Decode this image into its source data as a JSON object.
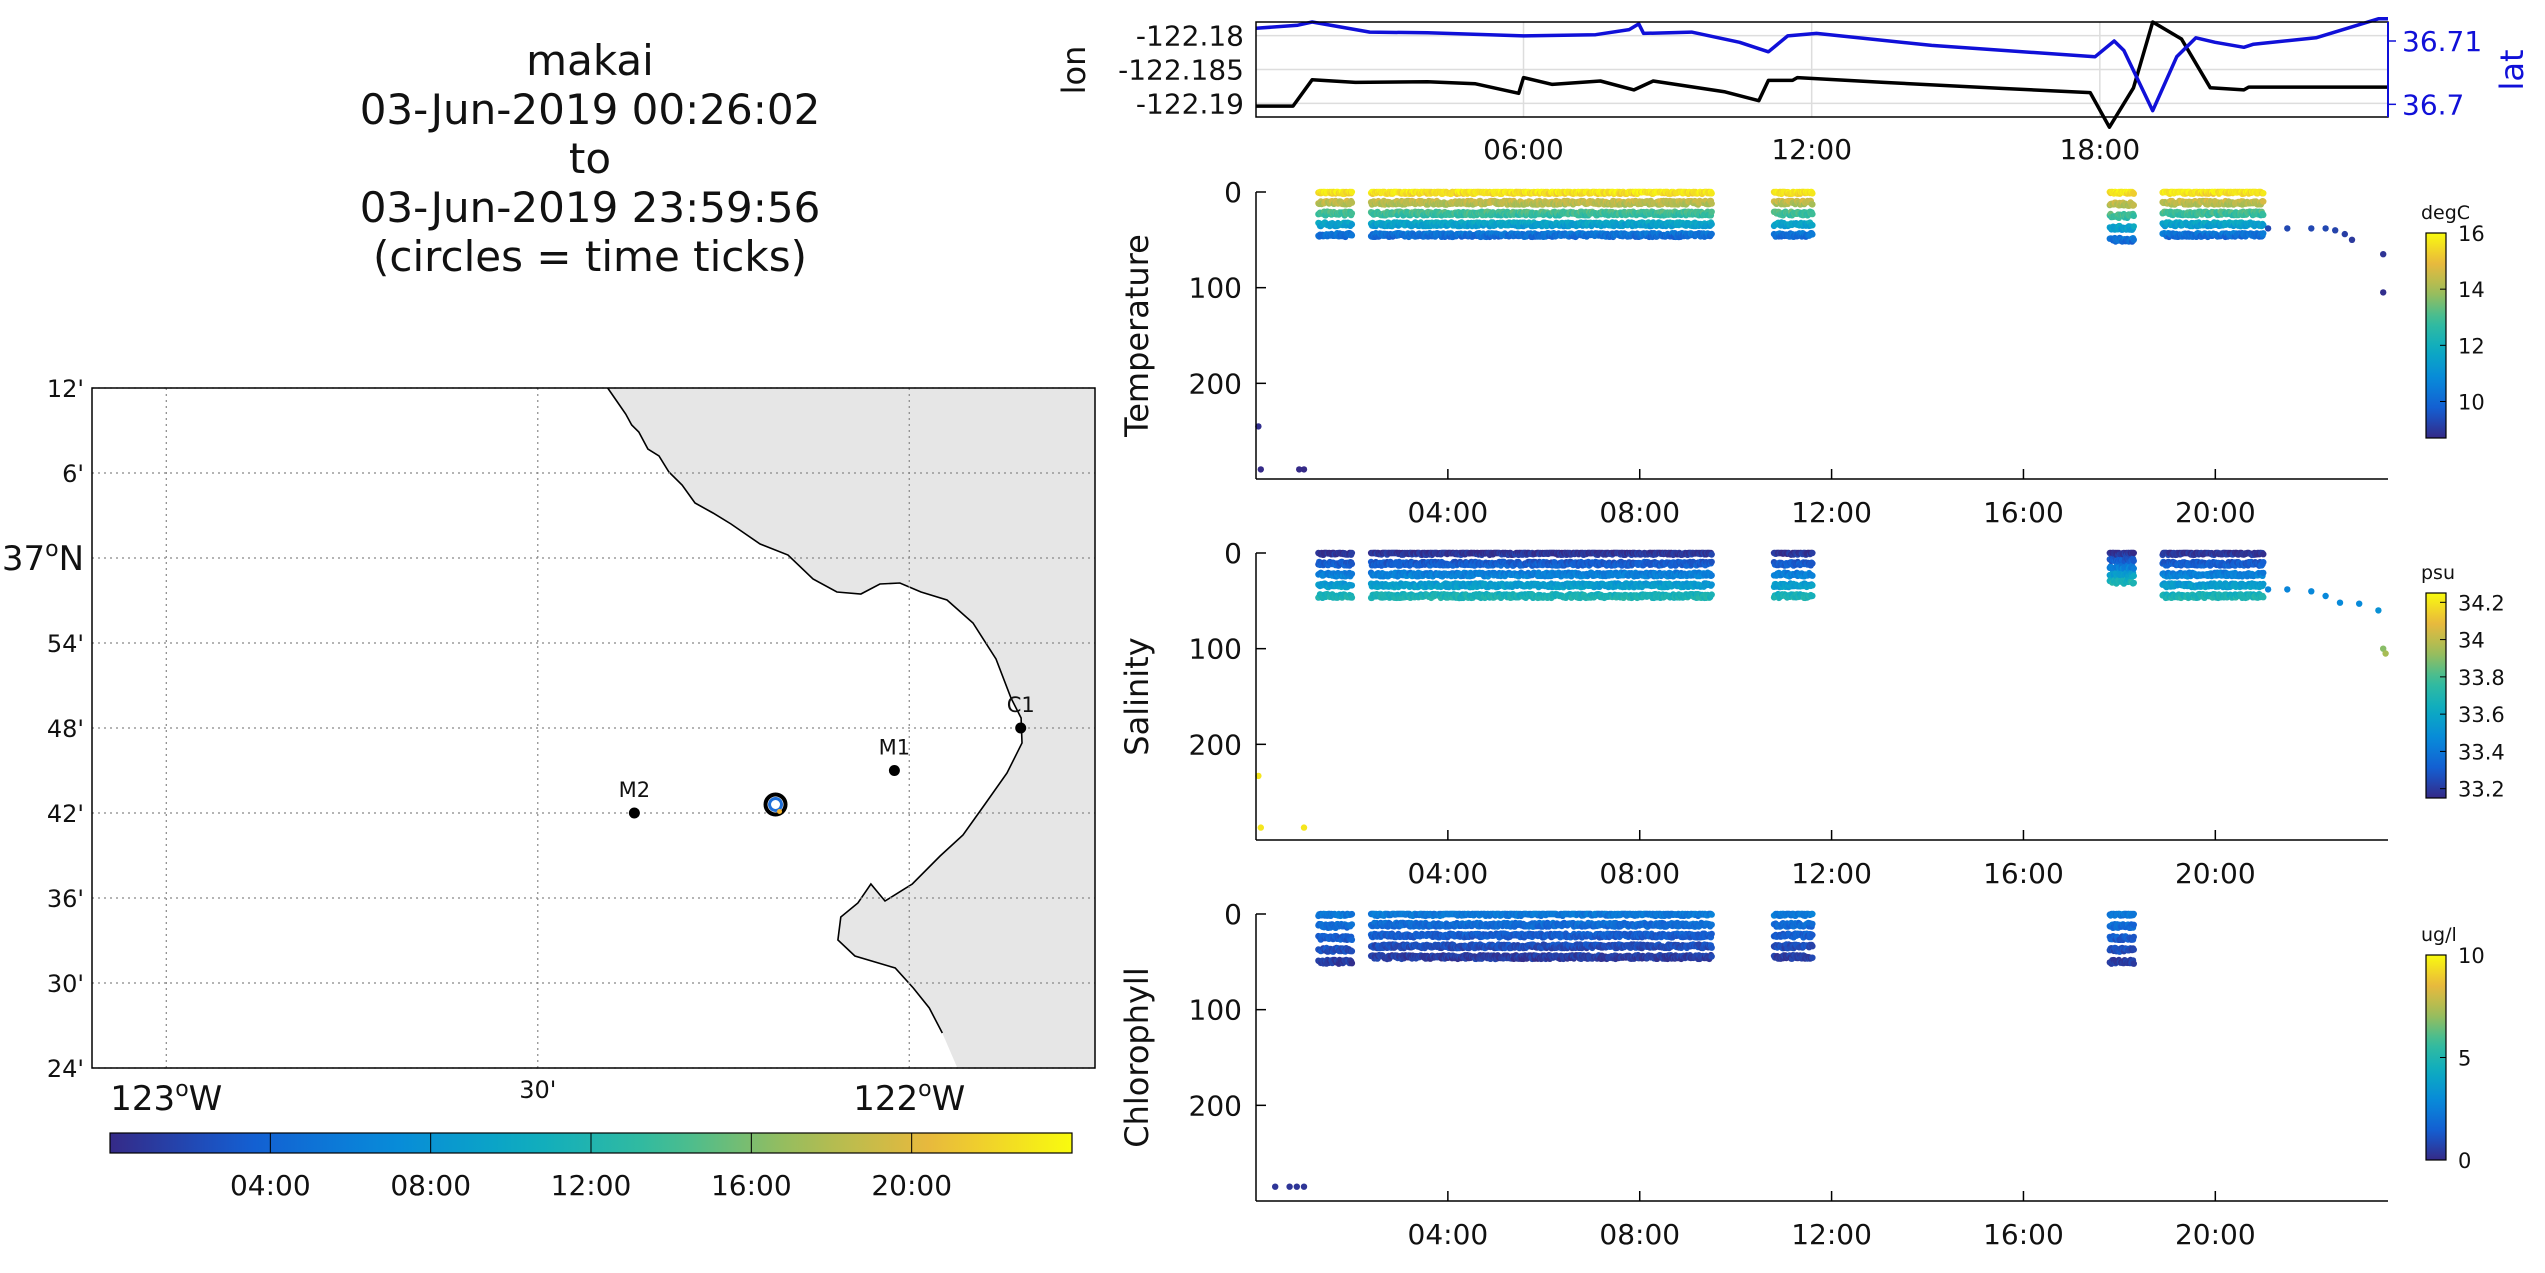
{
  "title": {
    "vehicle": "makai",
    "start": "03-Jun-2019 00:26:02",
    "to": "to",
    "end": "03-Jun-2019 23:59:56",
    "note": "(circles = time ticks)"
  },
  "chart_data": [
    {
      "type": "map",
      "name": "track-map",
      "lat_ticks": [
        "12'",
        "6'",
        "37°N",
        "54'",
        "48'",
        "42'",
        "36'",
        "30'",
        "24'"
      ],
      "lon_ticks": [
        "123°W",
        "30'",
        "122°W"
      ],
      "lon_range": [
        -123.1,
        -121.75
      ],
      "lat_range": [
        36.4,
        37.2
      ],
      "grid": true,
      "stations": [
        {
          "label": "M2",
          "lon": -122.37,
          "lat": 36.7
        },
        {
          "label": "M1",
          "lon": -122.02,
          "lat": 36.75
        },
        {
          "label": "C1",
          "lon": -121.85,
          "lat": 36.8
        }
      ],
      "vehicle_position": {
        "lon": -122.18,
        "lat": 36.71
      },
      "colorbar": {
        "ticks": [
          "04:00",
          "08:00",
          "12:00",
          "16:00",
          "20:00"
        ],
        "colormap": "parula",
        "range_hours": [
          0,
          24
        ]
      }
    },
    {
      "type": "line",
      "name": "lon-lat",
      "ylabel_left": "lon",
      "ylabel_right": "lat",
      "yticks_left": [
        "-122.18",
        "-122.185",
        "-122.19"
      ],
      "yticks_right": [
        "36.71",
        "36.7"
      ],
      "ylim_left": [
        -122.192,
        -122.178
      ],
      "ylim_right": [
        36.698,
        36.713
      ],
      "xlim_hours": [
        0.43,
        24.0
      ],
      "xticks": [
        "06:00",
        "12:00",
        "18:00"
      ],
      "grid": true,
      "series": [
        {
          "name": "lon",
          "color": "#000000",
          "points": [
            [
              0.43,
              -122.1904
            ],
            [
              1.2,
              -122.1904
            ],
            [
              1.6,
              -122.1865
            ],
            [
              2.5,
              -122.1869
            ],
            [
              4.0,
              -122.1868
            ],
            [
              5.0,
              -122.1871
            ],
            [
              5.9,
              -122.1885
            ],
            [
              6.0,
              -122.1862
            ],
            [
              6.6,
              -122.1872
            ],
            [
              7.6,
              -122.1867
            ],
            [
              8.3,
              -122.188
            ],
            [
              8.7,
              -122.1867
            ],
            [
              10.2,
              -122.1883
            ],
            [
              10.9,
              -122.1896
            ],
            [
              11.1,
              -122.1866
            ],
            [
              11.6,
              -122.1866
            ],
            [
              11.7,
              -122.1862
            ],
            [
              13.5,
              -122.1869
            ],
            [
              16.0,
              -122.1878
            ],
            [
              17.8,
              -122.1884
            ],
            [
              18.2,
              -122.1935
            ],
            [
              18.7,
              -122.1877
            ],
            [
              19.1,
              -122.178
            ],
            [
              19.7,
              -122.1805
            ],
            [
              20.3,
              -122.1877
            ],
            [
              21.0,
              -122.188
            ],
            [
              21.1,
              -122.1876
            ],
            [
              24.0,
              -122.1876
            ]
          ]
        },
        {
          "name": "lat",
          "color": "#1010d8",
          "points": [
            [
              0.43,
              36.712
            ],
            [
              1.3,
              36.7125
            ],
            [
              1.6,
              36.713
            ],
            [
              2.8,
              36.7114
            ],
            [
              4.0,
              36.7113
            ],
            [
              6.0,
              36.7108
            ],
            [
              7.5,
              36.711
            ],
            [
              8.2,
              36.7118
            ],
            [
              8.4,
              36.7127
            ],
            [
              8.5,
              36.7112
            ],
            [
              9.5,
              36.7114
            ],
            [
              10.5,
              36.7098
            ],
            [
              11.1,
              36.7083
            ],
            [
              11.5,
              36.7108
            ],
            [
              12.1,
              36.7112
            ],
            [
              14.5,
              36.7093
            ],
            [
              17.9,
              36.7075
            ],
            [
              18.3,
              36.71
            ],
            [
              18.5,
              36.7085
            ],
            [
              19.1,
              36.699
            ],
            [
              19.6,
              36.7075
            ],
            [
              20.0,
              36.7105
            ],
            [
              20.4,
              36.7098
            ],
            [
              21.0,
              36.709
            ],
            [
              21.2,
              36.7095
            ],
            [
              22.5,
              36.7105
            ],
            [
              23.8,
              36.7135
            ],
            [
              24.0,
              36.7135
            ]
          ]
        }
      ]
    },
    {
      "type": "scatter",
      "name": "temperature",
      "ylabel": "Temperature",
      "yticks": [
        "0",
        "100",
        "200"
      ],
      "ylim": [
        0,
        300
      ],
      "y_reversed": true,
      "xticks": [
        "04:00",
        "08:00",
        "12:00",
        "16:00",
        "20:00"
      ],
      "xlim_hours": [
        0.0,
        23.6
      ],
      "colorbar": {
        "label": "degC",
        "ticks": [
          "16",
          "14",
          "12",
          "10"
        ],
        "range": [
          8.7,
          16
        ]
      },
      "casts": [
        {
          "start": 1.3,
          "end": 2.0,
          "top": 0,
          "bottom": 45
        },
        {
          "start": 2.4,
          "end": 9.5,
          "top": 0,
          "bottom": 45
        },
        {
          "start": 10.8,
          "end": 11.6,
          "top": 0,
          "bottom": 45
        },
        {
          "start": 17.8,
          "end": 18.3,
          "top": 0,
          "bottom": 50
        },
        {
          "start": 18.9,
          "end": 21.0,
          "top": 0,
          "bottom": 45
        }
      ],
      "points": [
        [
          21.1,
          38,
          9.3
        ],
        [
          21.5,
          38,
          9.3
        ],
        [
          22.0,
          38,
          9.3
        ],
        [
          22.3,
          38,
          9.3
        ],
        [
          22.5,
          40,
          9.2
        ],
        [
          22.7,
          44,
          9.1
        ],
        [
          22.85,
          50,
          9.0
        ],
        [
          23.5,
          65,
          8.9
        ],
        [
          23.5,
          105,
          8.8
        ],
        [
          0.05,
          245,
          8.8
        ],
        [
          0.1,
          290,
          8.7
        ],
        [
          0.9,
          290,
          8.7
        ],
        [
          1.0,
          290,
          8.7
        ]
      ]
    },
    {
      "type": "scatter",
      "name": "salinity",
      "ylabel": "Salinity",
      "yticks": [
        "0",
        "100",
        "200"
      ],
      "ylim": [
        0,
        300
      ],
      "y_reversed": true,
      "xticks": [
        "04:00",
        "08:00",
        "12:00",
        "16:00",
        "20:00"
      ],
      "xlim_hours": [
        0.0,
        23.6
      ],
      "colorbar": {
        "label": "psu",
        "ticks": [
          "34.2",
          "34",
          "33.8",
          "33.6",
          "33.4",
          "33.2"
        ],
        "range": [
          33.15,
          34.25
        ]
      },
      "casts": [
        {
          "start": 1.3,
          "end": 2.0,
          "top": 0,
          "bottom": 45
        },
        {
          "start": 2.4,
          "end": 9.5,
          "top": 0,
          "bottom": 45
        },
        {
          "start": 10.8,
          "end": 11.6,
          "top": 0,
          "bottom": 45
        },
        {
          "start": 17.8,
          "end": 18.3,
          "top": 0,
          "bottom": 30
        },
        {
          "start": 18.9,
          "end": 21.0,
          "top": 0,
          "bottom": 45
        }
      ],
      "points": [
        [
          21.1,
          38,
          33.45
        ],
        [
          21.5,
          38,
          33.45
        ],
        [
          22.0,
          40,
          33.46
        ],
        [
          22.3,
          45,
          33.46
        ],
        [
          22.6,
          52,
          33.47
        ],
        [
          23.0,
          53,
          33.47
        ],
        [
          23.4,
          60,
          33.5
        ],
        [
          23.5,
          100,
          33.9
        ],
        [
          23.55,
          105,
          33.95
        ],
        [
          0.05,
          233,
          34.2
        ],
        [
          0.1,
          287,
          34.2
        ],
        [
          1.0,
          287,
          34.2
        ]
      ]
    },
    {
      "type": "scatter",
      "name": "chlorophyll",
      "ylabel": "Chlorophyll",
      "yticks": [
        "0",
        "100",
        "200"
      ],
      "ylim": [
        0,
        300
      ],
      "y_reversed": true,
      "xticks": [
        "04:00",
        "08:00",
        "12:00",
        "16:00",
        "20:00"
      ],
      "xlim_hours": [
        0.0,
        23.6
      ],
      "colorbar": {
        "label": "ug/l",
        "ticks": [
          "10",
          "5",
          "0"
        ],
        "range": [
          0,
          10
        ]
      },
      "casts": [
        {
          "start": 1.3,
          "end": 2.0,
          "top": 0,
          "bottom": 50
        },
        {
          "start": 2.4,
          "end": 9.5,
          "top": 0,
          "bottom": 45
        },
        {
          "start": 10.8,
          "end": 11.6,
          "top": 0,
          "bottom": 45
        },
        {
          "start": 17.8,
          "end": 18.3,
          "top": 0,
          "bottom": 50
        }
      ],
      "points": [
        [
          0.4,
          285,
          0.3
        ],
        [
          0.7,
          285,
          0.3
        ],
        [
          0.85,
          285,
          0.3
        ],
        [
          1.0,
          285,
          0.3
        ]
      ]
    }
  ]
}
